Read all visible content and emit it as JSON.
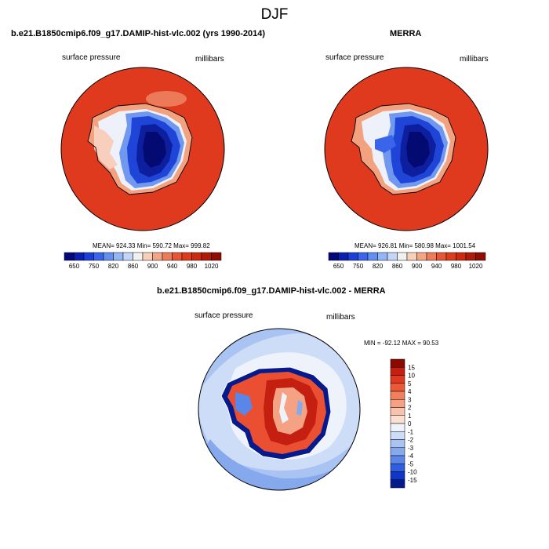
{
  "title": "DJF",
  "panels": {
    "model": {
      "title": "b.e21.B1850cmip6.f09_g17.DAMIP-hist-vlc.002 (yrs 1990-2014)",
      "left_label": "surface pressure",
      "right_label": "millibars",
      "stats": "MEAN= 924.33  Min= 590.72  Max= 999.82"
    },
    "obs": {
      "title": "MERRA",
      "left_label": "surface pressure",
      "right_label": "millibars",
      "stats": "MEAN= 926.81  Min= 580.98  Max= 1001.54"
    },
    "diff": {
      "title": "b.e21.B1850cmip6.f09_g17.DAMIP-hist-vlc.002 - MERRA",
      "left_label": "surface pressure",
      "right_label": "millibars",
      "stats": "MIN = -92.12 MAX =  90.53"
    }
  },
  "colorbar_top": {
    "labels": [
      "650",
      "750",
      "820",
      "860",
      "900",
      "940",
      "980",
      "1020"
    ],
    "colors": [
      "#020878",
      "#0a1fb0",
      "#1b3fd6",
      "#3a64ea",
      "#6390f0",
      "#93b6f5",
      "#c3d6f8",
      "#f1f1f1",
      "#f8cfb8",
      "#f2a688",
      "#ec7c5c",
      "#e65535",
      "#dd3b1c",
      "#cc2a10",
      "#b01a08",
      "#8f0d02"
    ]
  },
  "colorbar_diff": {
    "labels": [
      "15",
      "10",
      "5",
      "4",
      "3",
      "2",
      "1",
      "0",
      "-1",
      "-2",
      "-3",
      "-4",
      "-5",
      "-10",
      "-15"
    ],
    "colors": [
      "#8b0a00",
      "#c41f10",
      "#df3a20",
      "#ea5a38",
      "#f17f5c",
      "#f5a284",
      "#f8c3ac",
      "#fbe0d2",
      "#eef2fb",
      "#cddcf7",
      "#a9c3f2",
      "#86a9ee",
      "#5a86e8",
      "#2f5fe0",
      "#1036c8",
      "#051a8c"
    ]
  }
}
